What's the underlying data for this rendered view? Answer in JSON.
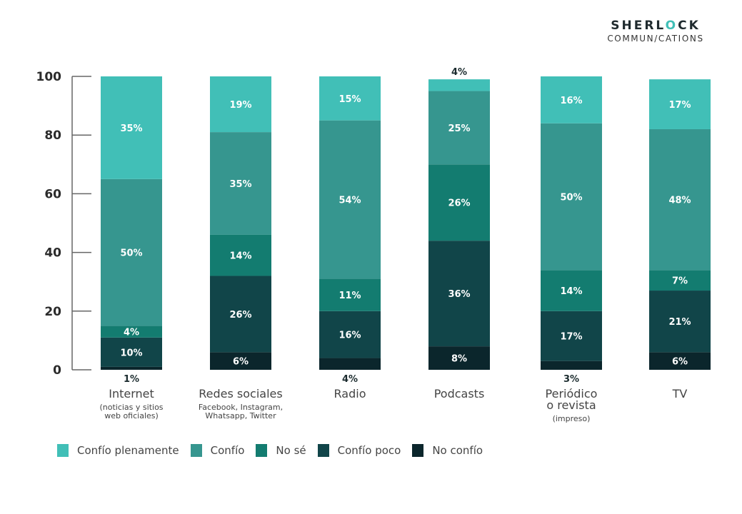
{
  "logo": {
    "line1_a": "SHERL",
    "line1_accent": "O",
    "line1_b": "CK",
    "line2_a": "COMMUN",
    "line2_accent": "/",
    "line2_b": "CATIONS"
  },
  "chart_data": {
    "type": "bar",
    "stacked": true,
    "title": "",
    "xlabel": "",
    "ylabel": "",
    "ylim": [
      0,
      100
    ],
    "yticks": [
      0,
      20,
      40,
      60,
      80,
      100
    ],
    "grid": false,
    "legend_position": "bottom",
    "categories": [
      "Internet",
      "Redes sociales",
      "Radio",
      "Podcasts",
      "Periódico o revista",
      "TV"
    ],
    "category_labels": [
      {
        "main": [
          "Internet"
        ],
        "sub": [
          "(noticias y sitios",
          "web oficiales)"
        ]
      },
      {
        "main": [
          "Redes sociales"
        ],
        "sub": [
          "Facebook, Instagram,",
          "Whatsapp, Twitter"
        ]
      },
      {
        "main": [
          "Radio"
        ],
        "sub": []
      },
      {
        "main": [
          "Podcasts"
        ],
        "sub": []
      },
      {
        "main": [
          "Periódico",
          "o revista"
        ],
        "sub": [
          "(impreso)"
        ]
      },
      {
        "main": [
          "TV"
        ],
        "sub": []
      }
    ],
    "series": [
      {
        "name": "No confío",
        "color": "#0b262c",
        "values": [
          1,
          6,
          4,
          8,
          3,
          6
        ]
      },
      {
        "name": "Confío poco",
        "color": "#114549",
        "values": [
          10,
          26,
          16,
          36,
          17,
          21
        ]
      },
      {
        "name": "No sé",
        "color": "#137c70",
        "values": [
          4,
          14,
          11,
          26,
          14,
          7
        ]
      },
      {
        "name": "Confío",
        "color": "#36968f",
        "values": [
          50,
          35,
          54,
          25,
          50,
          48
        ]
      },
      {
        "name": "Confío plenamente",
        "color": "#41bfb7",
        "values": [
          35,
          19,
          15,
          4,
          16,
          17
        ]
      }
    ],
    "value_suffix": "%"
  },
  "legend": [
    {
      "label": "Confío plenamente",
      "color": "#41bfb7"
    },
    {
      "label": "Confío",
      "color": "#36968f"
    },
    {
      "label": "No sé",
      "color": "#137c70"
    },
    {
      "label": "Confío poco",
      "color": "#114549"
    },
    {
      "label": "No confío",
      "color": "#0b262c"
    }
  ]
}
